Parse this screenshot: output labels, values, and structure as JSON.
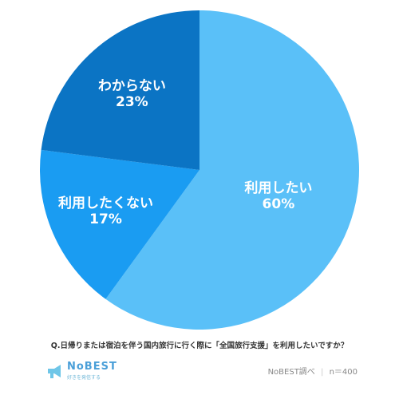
{
  "chart_data": {
    "type": "pie",
    "start_angle_deg": 0,
    "direction": "clockwise",
    "slices": [
      {
        "label": "利用したい",
        "value": 60,
        "value_label": "60%",
        "color": "#5ac0f8"
      },
      {
        "label": "利用したくない",
        "value": 17,
        "value_label": "17%",
        "color": "#1a9cf2"
      },
      {
        "label": "わからない",
        "value": 23,
        "value_label": "23%",
        "color": "#0b74c4"
      }
    ]
  },
  "question": "Q.日帰りまたは宿泊を伴う国内旅行に行く際に「全国旅行支援」を利用したいですか？",
  "logo": {
    "name": "NoBEST",
    "tagline": "好きを発信する",
    "name_color": "#4a9fd8",
    "icon_color": "#6fc6e8"
  },
  "source": {
    "text": "NoBEST調べ",
    "separator": "|",
    "sample": "n＝400"
  }
}
